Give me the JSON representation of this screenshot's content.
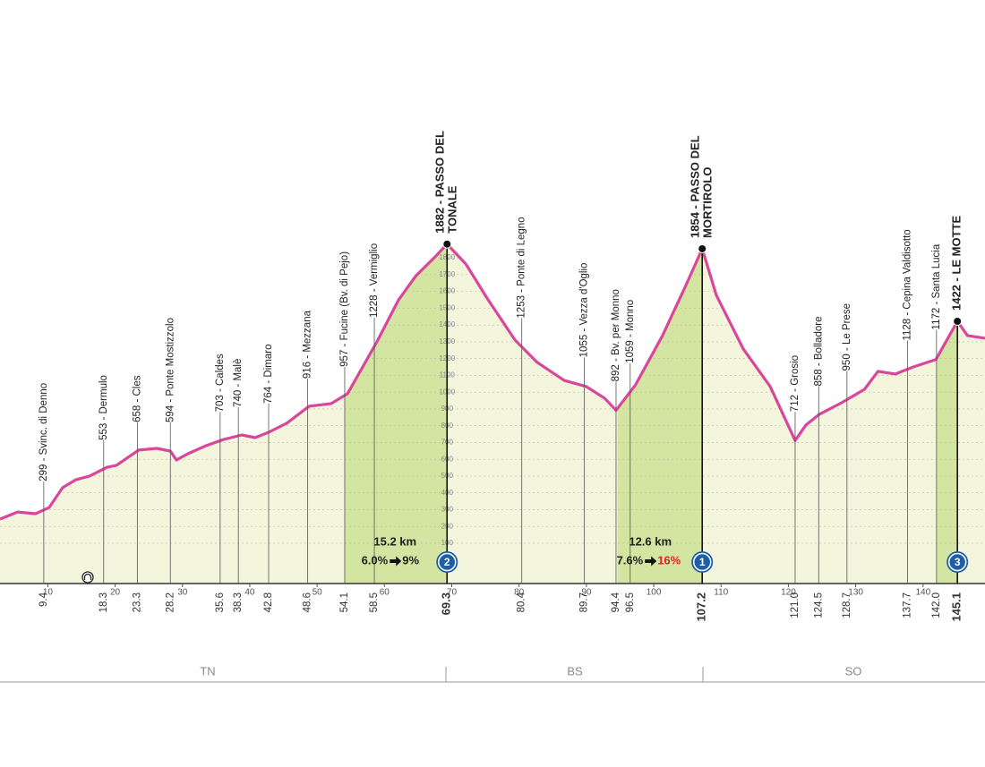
{
  "chart_data": {
    "type": "area",
    "xlim": [
      2.9,
      149.2
    ],
    "ylim": [
      -140,
      3336
    ],
    "xticks": [
      10,
      20,
      30,
      40,
      50,
      60,
      70,
      80,
      90,
      100,
      110,
      120,
      130,
      140
    ],
    "yticks": [
      100,
      200,
      300,
      400,
      500,
      600,
      700,
      800,
      900,
      1000,
      1100,
      1200,
      1300,
      1400,
      1500,
      1600,
      1700,
      1800
    ],
    "grid": true,
    "line_color": "#d9479c",
    "fill_color": "#f3f6dc",
    "climb_color": "#d3e5a0",
    "climb_marker_color": "#1d5ea6",
    "profile": {
      "x": [
        2.9,
        5.5,
        8.2,
        10.2,
        12.2,
        14.2,
        16.2,
        18.8,
        20.2,
        23.5,
        26.2,
        28.2,
        29.1,
        30.8,
        33.5,
        36.1,
        38.8,
        40.8,
        42.8,
        45.5,
        48.8,
        52.1,
        54.5,
        58.8,
        62.1,
        64.7,
        67.4,
        69.3,
        72.1,
        75.4,
        79.4,
        82.7,
        86.7,
        90.0,
        92.7,
        94.4,
        97.3,
        101.3,
        104.7,
        107.2,
        109.3,
        113.3,
        117.3,
        121.0,
        122.6,
        124.6,
        127.9,
        131.3,
        133.3,
        135.9,
        138.6,
        141.9,
        145.1,
        146.6,
        149.2
      ],
      "values": [
        244,
        286,
        276,
        313,
        431,
        479,
        500,
        553,
        564,
        655,
        665,
        649,
        596,
        633,
        681,
        718,
        745,
        729,
        761,
        815,
        916,
        932,
        990,
        1294,
        1550,
        1694,
        1801,
        1882,
        1763,
        1550,
        1310,
        1177,
        1070,
        1033,
        964,
        892,
        1044,
        1337,
        1630,
        1854,
        1577,
        1257,
        1033,
        712,
        804,
        868,
        937,
        1017,
        1124,
        1108,
        1151,
        1194,
        1422,
        1337,
        1321
      ]
    },
    "waypoints": [
      {
        "km": 9.4,
        "label": "299 - Svinc. di Denno"
      },
      {
        "km": 18.3,
        "label": "553 - Dermulo"
      },
      {
        "km": 23.3,
        "label": "658 - Cles"
      },
      {
        "km": 28.2,
        "label": "594 - Ponte Mostizzolo"
      },
      {
        "km": 35.6,
        "label": "703 - Caldes"
      },
      {
        "km": 38.3,
        "label": "740 - Malè"
      },
      {
        "km": 42.8,
        "label": "764 - Dimaro"
      },
      {
        "km": 48.6,
        "label": "916 - Mezzana"
      },
      {
        "km": 54.1,
        "label": "957 - Fucine (Bv. di Pejo)"
      },
      {
        "km": 58.5,
        "label": "1228 - Vermiglio"
      },
      {
        "km": 69.3,
        "label": [
          "1882 - PASSO DEL",
          "TONALE"
        ],
        "summit": true,
        "climb": {
          "category": "2",
          "length": {
            "value": 15.2,
            "label": "15.2 km"
          },
          "avg": "6.0%",
          "max": "9%"
        }
      },
      {
        "km": 80.4,
        "label": "1253 - Ponte di Legno"
      },
      {
        "km": 89.7,
        "label": "1055 - Vezza d'Oglio"
      },
      {
        "km": 94.4,
        "label": "892 - Bv. per Monno"
      },
      {
        "km": 96.5,
        "label": "1059 - Monno"
      },
      {
        "km": 107.2,
        "label": [
          "1854 - PASSO DEL",
          "MORTIROLO"
        ],
        "summit": true,
        "climb": {
          "category": "1",
          "length": {
            "value": 12.6,
            "label": "12.6 km"
          },
          "avg": "7.6%",
          "max": "16%",
          "max_color": "#e3202a"
        }
      },
      {
        "km": {
          "value": 121,
          "label": "121.0"
        },
        "label": "712 - Grosio"
      },
      {
        "km": 124.5,
        "label": "858 - Bolladore"
      },
      {
        "km": 128.7,
        "label": "950 - Le Prese"
      },
      {
        "km": 137.7,
        "label": "1128 - Cepina Valdisotto"
      },
      {
        "km": {
          "value": 142,
          "label": "142.0"
        },
        "label": "1172 - Santa Lucia"
      },
      {
        "km": 145.1,
        "label": "1422 - LE MOTTE",
        "summit": true,
        "climb": {
          "category": "3"
        }
      }
    ],
    "regions": [
      "TN",
      "BS",
      "SO"
    ]
  }
}
